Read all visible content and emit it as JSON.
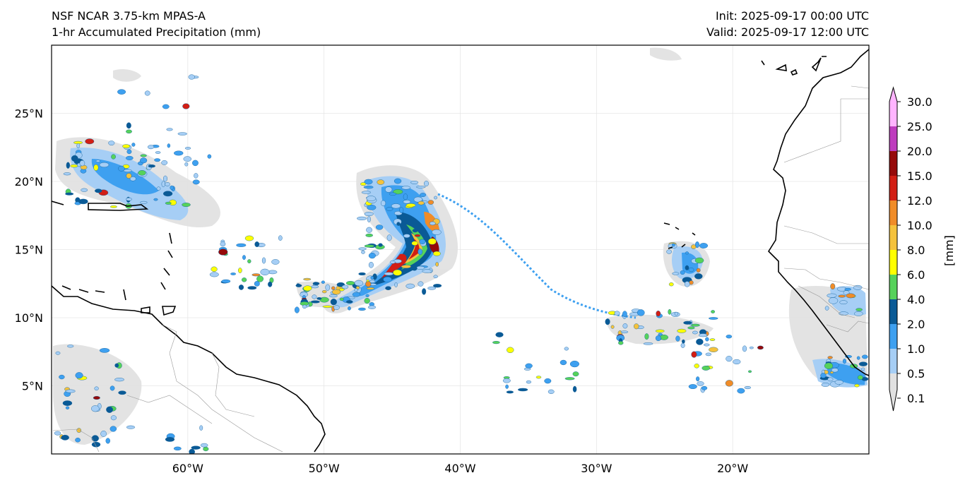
{
  "header": {
    "model": "NSF NCAR 3.75-km MPAS-A",
    "field": "1-hr Accumulated Precipitation (mm)",
    "init": "Init: 2025-09-17 00:00 UTC",
    "valid": "Valid: 2025-09-17 12:00 UTC"
  },
  "map": {
    "lon_range": [
      -70,
      -10
    ],
    "lat_range": [
      0,
      30
    ],
    "lon_ticks": [
      {
        "value": -60,
        "label": "60°W"
      },
      {
        "value": -50,
        "label": "50°W"
      },
      {
        "value": -40,
        "label": "40°W"
      },
      {
        "value": -30,
        "label": "30°W"
      },
      {
        "value": -20,
        "label": "20°W"
      }
    ],
    "lat_ticks": [
      {
        "value": 25,
        "label": "25°N"
      },
      {
        "value": 20,
        "label": "20°N"
      },
      {
        "value": 15,
        "label": "15°N"
      },
      {
        "value": 10,
        "label": "10°N"
      },
      {
        "value": 5,
        "label": "5°N"
      }
    ],
    "gridlines": true
  },
  "colorbar": {
    "unit": "[mm]",
    "levels": [
      "0.1",
      "0.5",
      "1.0",
      "2.0",
      "4.0",
      "6.0",
      "8.0",
      "10.0",
      "12.0",
      "15.0",
      "20.0",
      "25.0",
      "30.0"
    ],
    "colors": [
      "#e1e1e1",
      "#a6cef5",
      "#3ea0f0",
      "#0a5a96",
      "#56d25a",
      "#ffff00",
      "#f5c23c",
      "#f08c28",
      "#d21e14",
      "#960a0a",
      "#be3cbe",
      "#ffb4ff"
    ]
  }
}
